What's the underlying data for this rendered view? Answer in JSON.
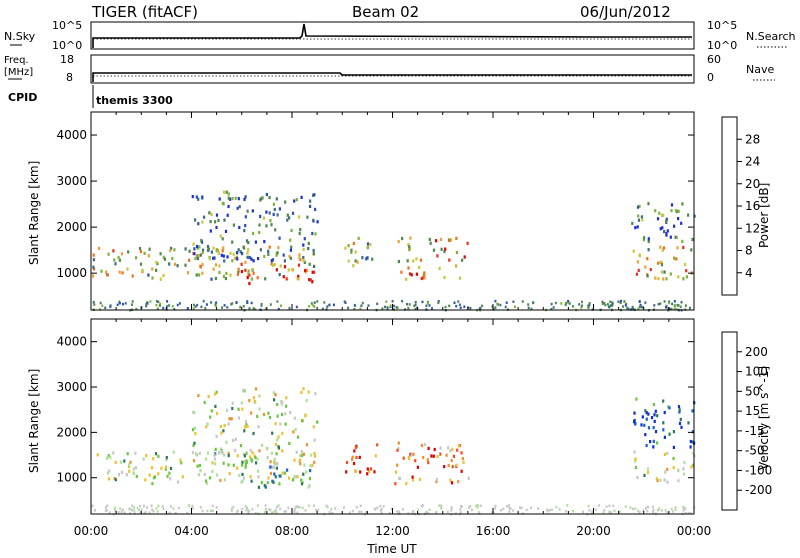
{
  "header": {
    "title": "TIGER (fitACF)",
    "beam": "Beam 02",
    "date": "06/Jun/2012"
  },
  "small_panels": {
    "nsky_label": "N.Sky",
    "nsky_ticks": [
      "10^5",
      "10^0"
    ],
    "nsearch_label": "N.Search",
    "nsearch_ticks": [
      "10^5",
      "10^0"
    ],
    "freq_label_line1": "Freq.",
    "freq_label_line2": "[MHz]",
    "freq_ticks": [
      "18",
      "8"
    ],
    "nave_label": "Nave",
    "nave_ticks": [
      "60",
      "0"
    ],
    "cpid_label": "CPID",
    "cpid_value": "themis 3300"
  },
  "colors": {
    "power_scale": [
      "#1f2fd6",
      "#2a4fb6",
      "#3f6f7a",
      "#4e8a4a",
      "#7fb23a",
      "#c8c83a",
      "#f0a032",
      "#f07020",
      "#e03020",
      "#e00000"
    ],
    "velocity_scale": [
      "#0c2fd6",
      "#1a5fd6",
      "#2a7a5a",
      "#6ac840",
      "#b0e0a0",
      "#c8c8c8",
      "#f0c030",
      "#f09030",
      "#f05020",
      "#e00000"
    ]
  },
  "chart_data": [
    {
      "type": "heatmap",
      "title": "",
      "xlabel": "",
      "ylabel": "Slant Range [km]",
      "colorbar_label": "Power [dB]",
      "colorbar_ticks": [
        "28",
        "24",
        "20",
        "16",
        "12",
        "8",
        "4"
      ],
      "x_ticks": [
        "00:00",
        "04:00",
        "08:00",
        "12:00",
        "16:00",
        "20:00",
        "00:00"
      ],
      "y_ticks": [
        "1000",
        "2000",
        "3000",
        "4000"
      ],
      "xlim_hours": [
        0,
        24
      ],
      "ylim_km": [
        200,
        4500
      ],
      "clim": [
        0,
        32
      ],
      "blobs": [
        {
          "t0": 0.0,
          "t1": 8.9,
          "r0": 900,
          "r1": 1600,
          "level": 16
        },
        {
          "t0": 5.5,
          "t1": 8.9,
          "r0": 800,
          "r1": 1200,
          "level": 26
        },
        {
          "t0": 4.0,
          "t1": 9.0,
          "r0": 1300,
          "r1": 2800,
          "level": 8
        },
        {
          "t0": 10.0,
          "t1": 11.2,
          "r0": 1100,
          "r1": 1800,
          "level": 14
        },
        {
          "t0": 12.2,
          "t1": 15.0,
          "r0": 900,
          "r1": 1800,
          "level": 20
        },
        {
          "t0": 21.5,
          "t1": 24.0,
          "r0": 900,
          "r1": 1600,
          "level": 18
        },
        {
          "t0": 21.5,
          "t1": 24.0,
          "r0": 1700,
          "r1": 2600,
          "level": 8
        }
      ]
    },
    {
      "type": "heatmap",
      "title": "",
      "xlabel": "Time UT",
      "ylabel": "Slant Range [km]",
      "colorbar_label": "Velocity [m s^-1]",
      "colorbar_ticks": [
        "200",
        "100",
        "50",
        "15",
        "-15",
        "-50",
        "-100",
        "-200"
      ],
      "x_ticks": [
        "00:00",
        "04:00",
        "08:00",
        "12:00",
        "16:00",
        "20:00",
        "00:00"
      ],
      "y_ticks": [
        "1000",
        "2000",
        "3000",
        "4000"
      ],
      "xlim_hours": [
        0,
        24
      ],
      "ylim_km": [
        200,
        4500
      ],
      "clim": [
        -250,
        250
      ],
      "blobs": [
        {
          "t0": 0.0,
          "t1": 8.9,
          "r0": 900,
          "r1": 1600,
          "level": 0
        },
        {
          "t0": 6.5,
          "t1": 8.9,
          "r0": 800,
          "r1": 1300,
          "level": -80
        },
        {
          "t0": 4.0,
          "t1": 9.0,
          "r0": 1300,
          "r1": 3000,
          "level": 5
        },
        {
          "t0": 10.0,
          "t1": 11.5,
          "r0": 1100,
          "r1": 1800,
          "level": 180
        },
        {
          "t0": 12.0,
          "t1": 15.0,
          "r0": 900,
          "r1": 1800,
          "level": 150
        },
        {
          "t0": 21.5,
          "t1": 24.0,
          "r0": 900,
          "r1": 1600,
          "level": 0
        },
        {
          "t0": 21.5,
          "t1": 24.0,
          "r0": 1700,
          "r1": 2800,
          "level": -200
        }
      ]
    }
  ]
}
